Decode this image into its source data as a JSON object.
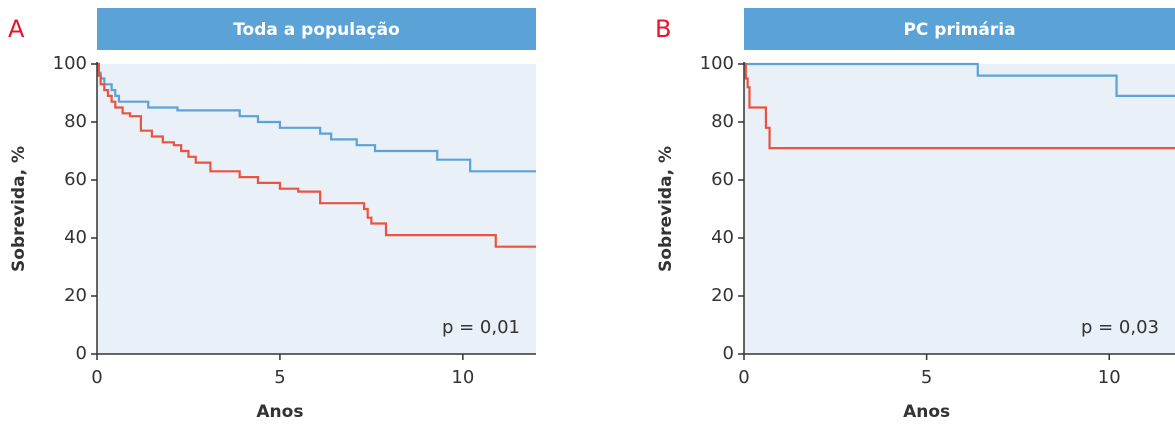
{
  "chart_data": [
    {
      "type": "step",
      "panel": "A",
      "title": "Toda a população",
      "xlabel": "Anos",
      "ylabel": "Sobrevida, %",
      "annotation": "p = 0,01",
      "xlim": [
        0,
        12
      ],
      "ylim": [
        0,
        100
      ],
      "xticks": [
        0,
        5,
        10
      ],
      "yticks": [
        0,
        20,
        40,
        60,
        80,
        100
      ],
      "series": [
        {
          "color": "#5ba3d6",
          "x": [
            0,
            0.05,
            0.1,
            0.2,
            0.4,
            0.5,
            0.6,
            1.4,
            2.2,
            3.9,
            4.4,
            5.0,
            6.1,
            6.4,
            7.1,
            7.6,
            9.3,
            10.2,
            12
          ],
          "values": [
            100,
            97,
            95,
            93,
            91,
            89,
            87,
            85,
            84,
            82,
            80,
            78,
            76,
            74,
            72,
            70,
            67,
            63,
            63
          ]
        },
        {
          "color": "#e8543f",
          "x": [
            0,
            0.05,
            0.1,
            0.2,
            0.3,
            0.4,
            0.5,
            0.7,
            0.9,
            1.2,
            1.5,
            1.8,
            2.1,
            2.3,
            2.5,
            2.7,
            3.1,
            3.9,
            4.4,
            5.0,
            5.5,
            6.1,
            7.3,
            7.4,
            7.5,
            7.9,
            10.9,
            12
          ],
          "values": [
            100,
            96,
            93,
            91,
            89,
            87,
            85,
            83,
            82,
            77,
            75,
            73,
            72,
            70,
            68,
            66,
            63,
            61,
            59,
            57,
            56,
            52,
            50,
            47,
            45,
            41,
            37,
            37
          ]
        }
      ]
    },
    {
      "type": "step",
      "panel": "B",
      "title": "PC primária",
      "xlabel": "Anos",
      "ylabel": "Sobrevida, %",
      "annotation": "p = 0,03",
      "xlim": [
        0,
        11.8
      ],
      "ylim": [
        0,
        100
      ],
      "xticks": [
        0,
        5,
        10
      ],
      "yticks": [
        0,
        20,
        40,
        60,
        80,
        100
      ],
      "series": [
        {
          "color": "#5ba3d6",
          "x": [
            0,
            6.4,
            10.2,
            11.8
          ],
          "values": [
            100,
            96,
            89,
            89
          ]
        },
        {
          "color": "#e8543f",
          "x": [
            0,
            0.05,
            0.1,
            0.15,
            0.6,
            0.7,
            11.8
          ],
          "values": [
            100,
            95,
            92,
            85,
            78,
            71,
            71
          ]
        }
      ]
    }
  ]
}
